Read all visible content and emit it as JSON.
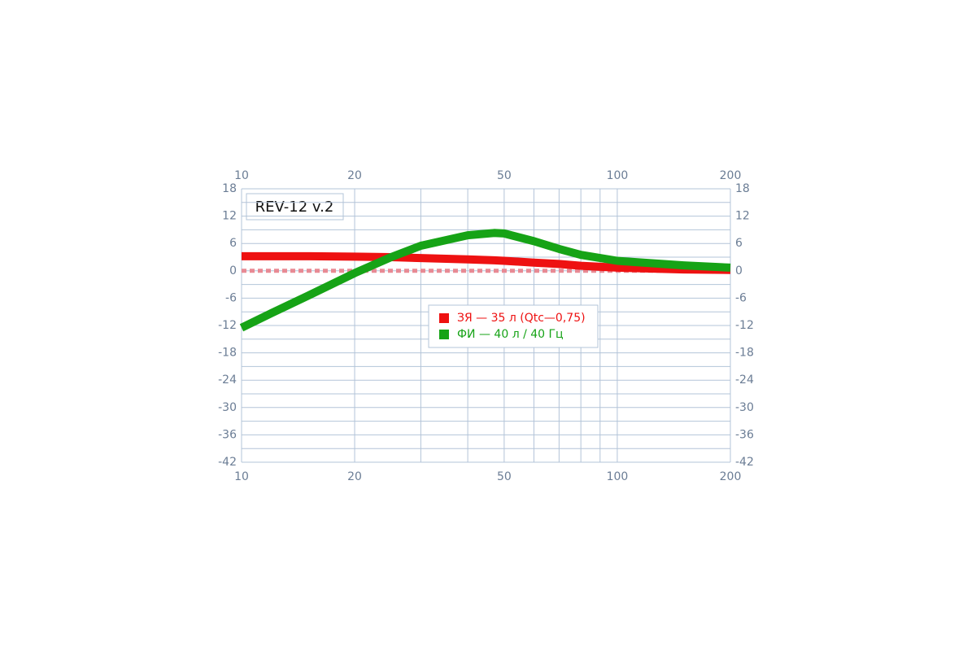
{
  "chart_data": {
    "type": "line",
    "title": "REV-12 v.2",
    "x": [
      10,
      12,
      15,
      20,
      25,
      30,
      40,
      47,
      50,
      60,
      70,
      80,
      100,
      150,
      200
    ],
    "series": [
      {
        "name": "ЗЯ — 35 л (Qtc—0,75)",
        "color": "#ee1111",
        "values": [
          3.2,
          3.2,
          3.2,
          3.1,
          3.0,
          2.8,
          2.5,
          2.3,
          2.2,
          1.8,
          1.5,
          1.1,
          0.7,
          0.3,
          0.2
        ]
      },
      {
        "name": "ФИ — 40 л / 40 Гц",
        "color": "#16a316",
        "values": [
          -12.5,
          -9.3,
          -5.5,
          -0.5,
          3,
          5.5,
          7.8,
          8.3,
          8.2,
          6.5,
          4.8,
          3.5,
          2.2,
          1.2,
          0.7
        ]
      }
    ],
    "xlim": [
      10,
      200
    ],
    "xticks": [
      10,
      20,
      50,
      100,
      200
    ],
    "xlog": true,
    "xgrid": [
      10,
      20,
      30,
      40,
      50,
      60,
      70,
      80,
      90,
      100,
      200
    ],
    "ylim": [
      -42,
      18
    ],
    "yticks": [
      18,
      12,
      6,
      0,
      -6,
      -12,
      -18,
      -24,
      -30,
      -36,
      -42
    ],
    "ygrid": [
      18,
      15,
      12,
      9,
      6,
      3,
      0,
      -3,
      -6,
      -9,
      -12,
      -15,
      -18,
      -21,
      -24,
      -27,
      -30,
      -33,
      -36,
      -39,
      -42
    ],
    "reference_line": {
      "value": 0,
      "color": "#e88a94"
    },
    "grid": true
  }
}
